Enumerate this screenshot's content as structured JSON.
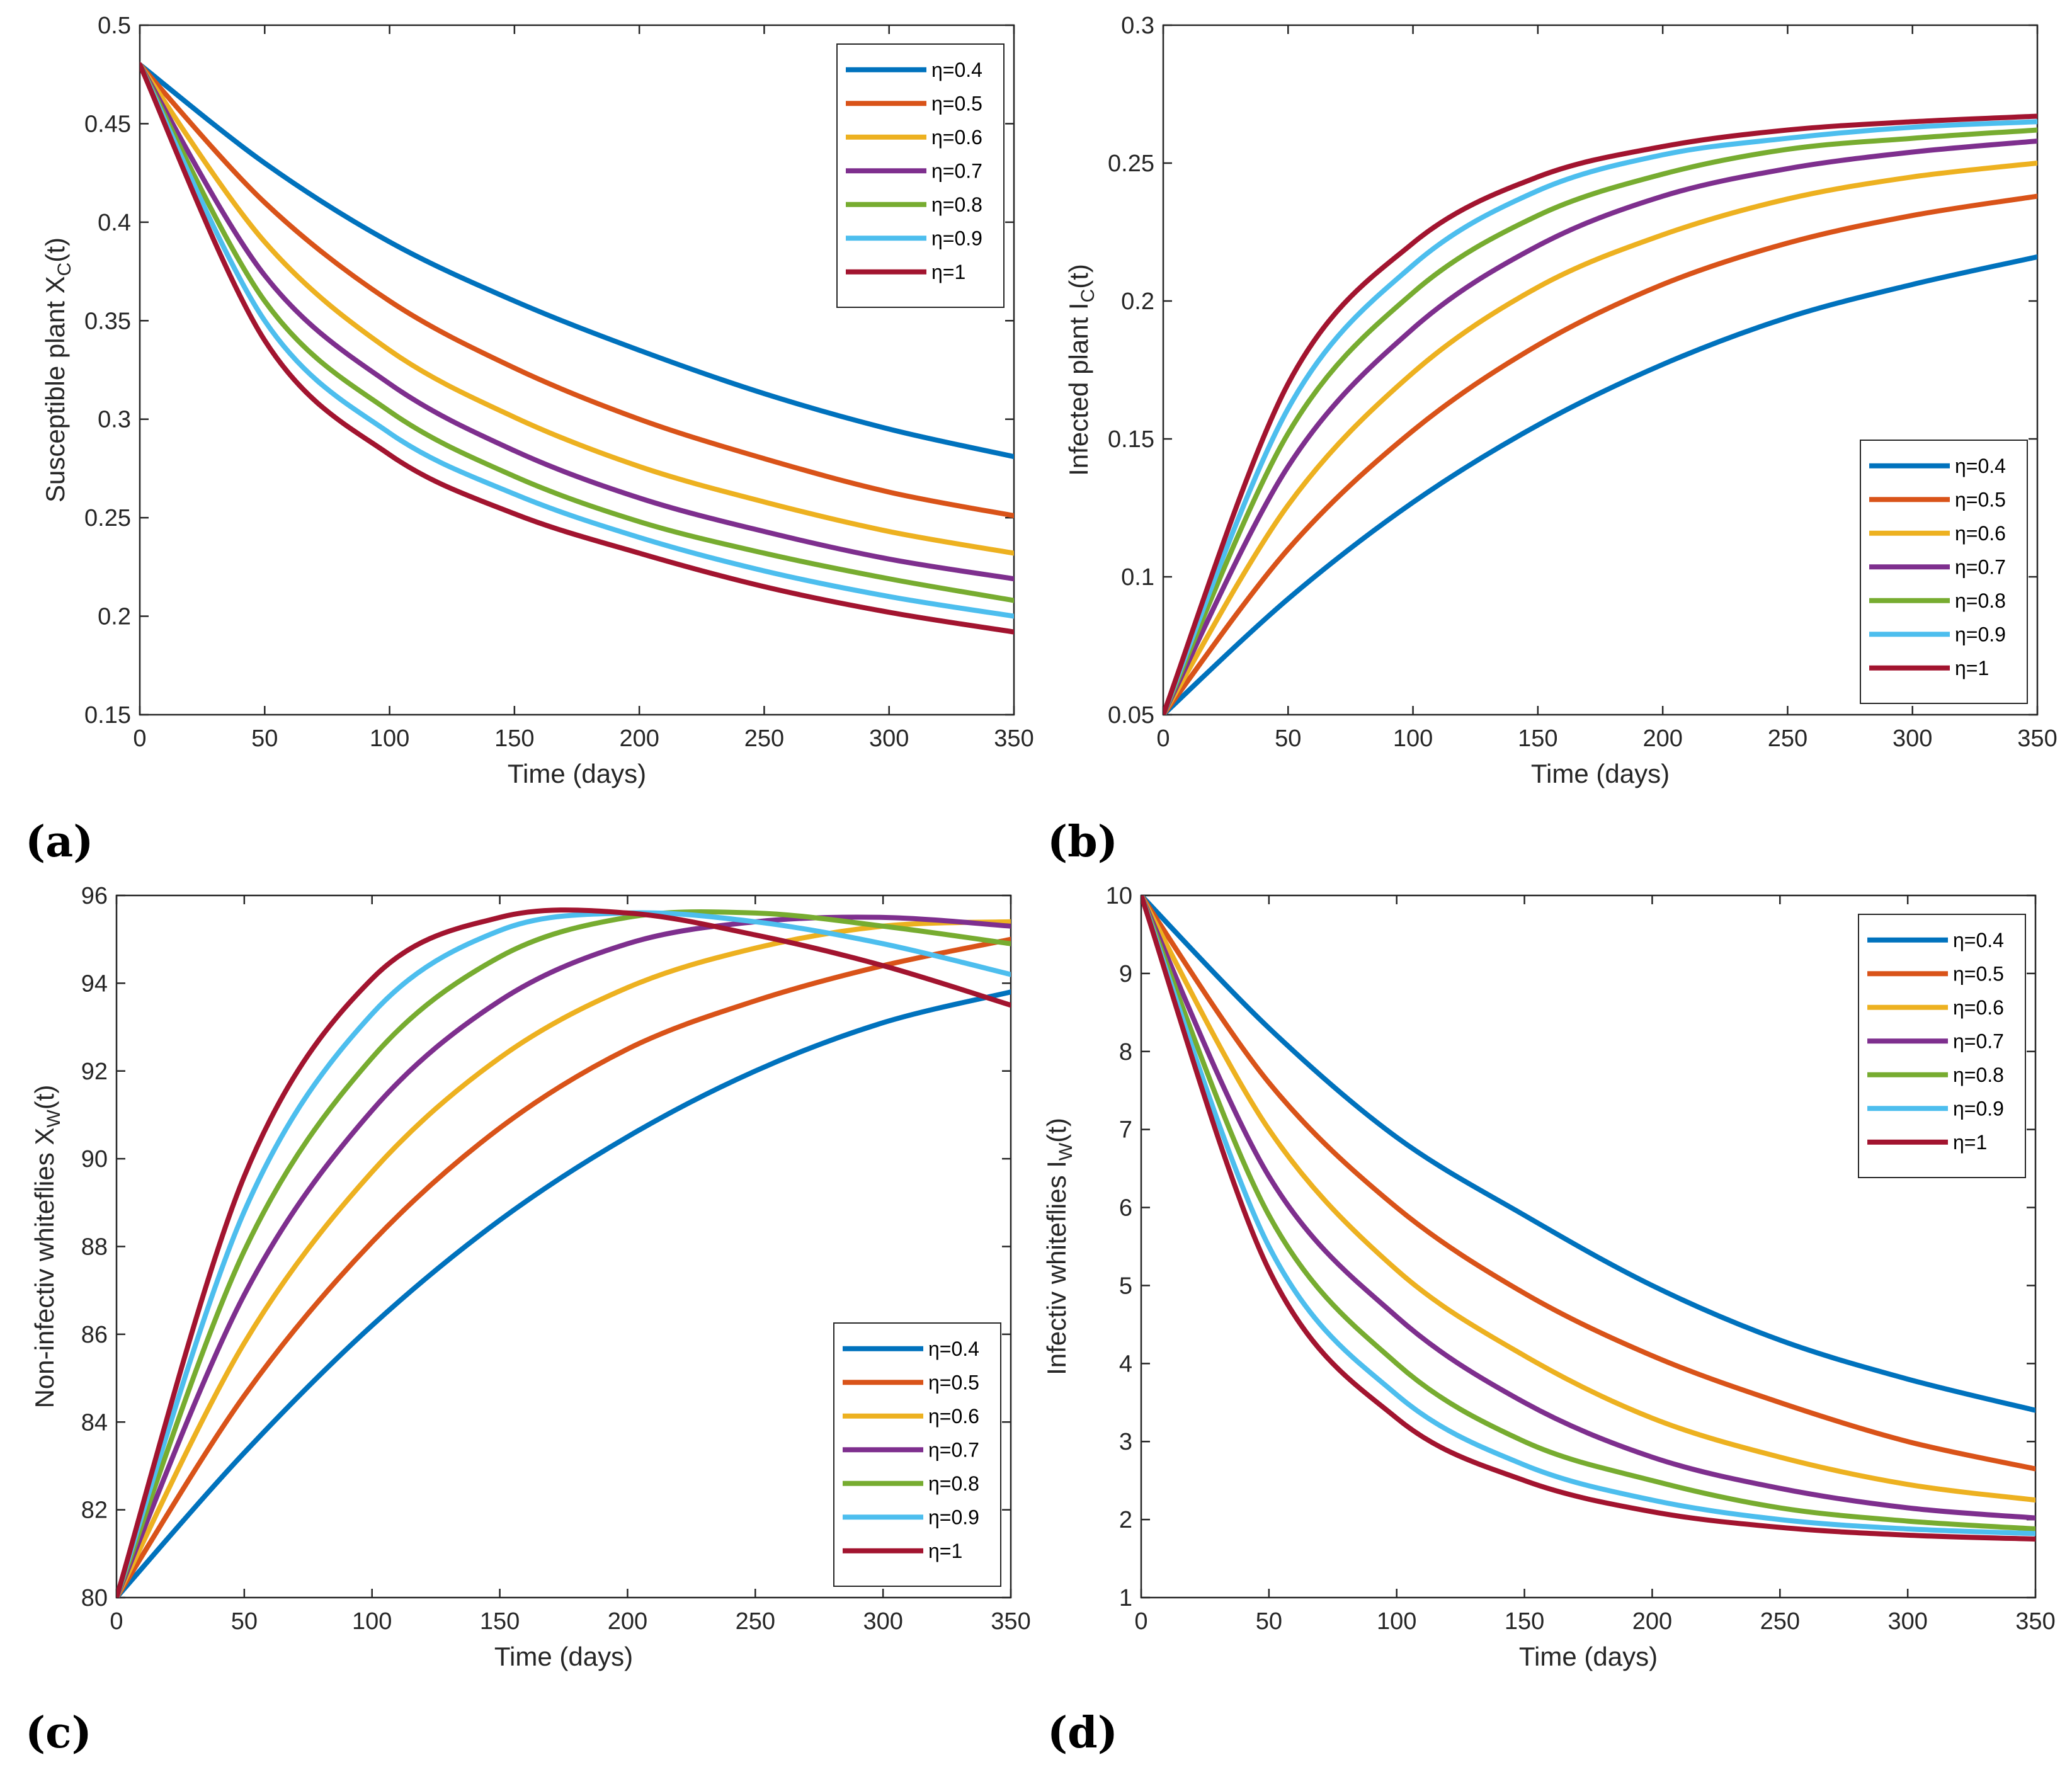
{
  "figure": {
    "panel_labels": [
      "(a)",
      "(b)",
      "(c)",
      "(d)"
    ]
  },
  "colors": {
    "eta_0.4": "#0072BD",
    "eta_0.5": "#D95319",
    "eta_0.6": "#EDB120",
    "eta_0.7": "#7E2F8E",
    "eta_0.8": "#77AC30",
    "eta_0.9": "#4DBEEE",
    "eta_1": "#A2142F"
  },
  "chart_data": [
    {
      "id": "a",
      "panel_label": "(a)",
      "type": "line",
      "title": "",
      "xlabel": "Time (days)",
      "ylabel_main": "Susceptible plant X",
      "ylabel_sub": "C",
      "ylabel_tail": "(t)",
      "xlim": [
        0,
        350
      ],
      "ylim": [
        0.15,
        0.5
      ],
      "xticks": [
        0,
        50,
        100,
        150,
        200,
        250,
        300,
        350
      ],
      "yticks": [
        0.15,
        0.2,
        0.25,
        0.3,
        0.35,
        0.4,
        0.45,
        0.5
      ],
      "ytick_labels": [
        "0.15",
        "0.2",
        "0.25",
        "0.3",
        "0.35",
        "0.4",
        "0.45",
        "0.5"
      ],
      "legend_position": "top-right",
      "x": [
        0,
        50,
        100,
        150,
        200,
        250,
        300,
        350
      ],
      "series": [
        {
          "name": "η=0.4",
          "values": [
            0.48,
            0.43,
            0.39,
            0.36,
            0.335,
            0.313,
            0.295,
            0.281
          ]
        },
        {
          "name": "η=0.5",
          "values": [
            0.48,
            0.41,
            0.36,
            0.326,
            0.3,
            0.28,
            0.263,
            0.251
          ]
        },
        {
          "name": "η=0.6",
          "values": [
            0.48,
            0.39,
            0.335,
            0.301,
            0.276,
            0.258,
            0.243,
            0.232
          ]
        },
        {
          "name": "η=0.7",
          "values": [
            0.48,
            0.373,
            0.318,
            0.284,
            0.26,
            0.243,
            0.229,
            0.219
          ]
        },
        {
          "name": "η=0.8",
          "values": [
            0.48,
            0.36,
            0.304,
            0.271,
            0.248,
            0.232,
            0.219,
            0.208
          ]
        },
        {
          "name": "η=0.9",
          "values": [
            0.48,
            0.35,
            0.293,
            0.262,
            0.24,
            0.223,
            0.21,
            0.2
          ]
        },
        {
          "name": "η=1",
          "values": [
            0.48,
            0.34,
            0.282,
            0.252,
            0.232,
            0.215,
            0.202,
            0.192
          ]
        }
      ]
    },
    {
      "id": "b",
      "panel_label": "(b)",
      "type": "line",
      "title": "",
      "xlabel": "Time (days)",
      "ylabel_main": "Infected plant I",
      "ylabel_sub": "C",
      "ylabel_tail": "(t)",
      "xlim": [
        0,
        350
      ],
      "ylim": [
        0.05,
        0.3
      ],
      "xticks": [
        0,
        50,
        100,
        150,
        200,
        250,
        300,
        350
      ],
      "yticks": [
        0.05,
        0.1,
        0.15,
        0.2,
        0.25,
        0.3
      ],
      "ytick_labels": [
        "0.05",
        "0.1",
        "0.15",
        "0.2",
        "0.25",
        "0.3"
      ],
      "legend_position": "bottom-right",
      "x": [
        0,
        50,
        100,
        150,
        200,
        250,
        300,
        350
      ],
      "series": [
        {
          "name": "η=0.4",
          "values": [
            0.05,
            0.092,
            0.127,
            0.155,
            0.177,
            0.194,
            0.206,
            0.216
          ]
        },
        {
          "name": "η=0.5",
          "values": [
            0.05,
            0.11,
            0.153,
            0.184,
            0.206,
            0.221,
            0.231,
            0.238
          ]
        },
        {
          "name": "η=0.6",
          "values": [
            0.05,
            0.126,
            0.174,
            0.205,
            0.224,
            0.237,
            0.245,
            0.25
          ]
        },
        {
          "name": "η=0.7",
          "values": [
            0.05,
            0.14,
            0.19,
            0.22,
            0.238,
            0.248,
            0.254,
            0.258
          ]
        },
        {
          "name": "η=0.8",
          "values": [
            0.05,
            0.152,
            0.203,
            0.231,
            0.246,
            0.255,
            0.259,
            0.262
          ]
        },
        {
          "name": "η=0.9",
          "values": [
            0.05,
            0.161,
            0.213,
            0.24,
            0.253,
            0.259,
            0.263,
            0.265
          ]
        },
        {
          "name": "η=1",
          "values": [
            0.05,
            0.17,
            0.221,
            0.245,
            0.256,
            0.262,
            0.265,
            0.267
          ]
        }
      ]
    },
    {
      "id": "c",
      "panel_label": "(c)",
      "type": "line",
      "title": "",
      "xlabel": "Time (days)",
      "ylabel_main": "Non-infectiv whiteflies X",
      "ylabel_sub": "W",
      "ylabel_tail": "(t)",
      "xlim": [
        0,
        350
      ],
      "ylim": [
        80,
        96
      ],
      "xticks": [
        0,
        50,
        100,
        150,
        200,
        250,
        300,
        350
      ],
      "yticks": [
        80,
        82,
        84,
        86,
        88,
        90,
        92,
        94,
        96
      ],
      "ytick_labels": [
        "80",
        "82",
        "84",
        "86",
        "88",
        "90",
        "92",
        "94",
        "96"
      ],
      "legend_position": "bottom-right",
      "x": [
        0,
        50,
        100,
        150,
        200,
        250,
        300,
        350
      ],
      "series": [
        {
          "name": "η=0.4",
          "values": [
            80,
            83.3,
            86.2,
            88.6,
            90.5,
            92,
            93.1,
            93.8
          ]
        },
        {
          "name": "η=0.5",
          "values": [
            80,
            84.6,
            88.1,
            90.7,
            92.5,
            93.6,
            94.4,
            95
          ]
        },
        {
          "name": "η=0.6",
          "values": [
            80,
            85.8,
            89.7,
            92.3,
            93.9,
            94.8,
            95.3,
            95.4
          ]
        },
        {
          "name": "η=0.7",
          "values": [
            80,
            86.9,
            91.1,
            93.6,
            94.9,
            95.4,
            95.5,
            95.3
          ]
        },
        {
          "name": "η=0.8",
          "values": [
            80,
            87.9,
            92.3,
            94.6,
            95.5,
            95.6,
            95.3,
            94.9
          ]
        },
        {
          "name": "η=0.9",
          "values": [
            80,
            88.8,
            93.3,
            95.2,
            95.6,
            95.4,
            94.9,
            94.2
          ]
        },
        {
          "name": "η=1",
          "values": [
            80,
            89.6,
            94.1,
            95.5,
            95.6,
            95.1,
            94.4,
            93.5
          ]
        }
      ]
    },
    {
      "id": "d",
      "panel_label": "(d)",
      "type": "line",
      "title": "",
      "xlabel": "Time (days)",
      "ylabel_main": "Infectiv whiteflies I",
      "ylabel_sub": "W",
      "ylabel_tail": "(t)",
      "xlim": [
        0,
        350
      ],
      "ylim": [
        1,
        10
      ],
      "xticks": [
        0,
        50,
        100,
        150,
        200,
        250,
        300,
        350
      ],
      "yticks": [
        1,
        2,
        3,
        4,
        5,
        6,
        7,
        8,
        9,
        10
      ],
      "ytick_labels": [
        "1",
        "2",
        "3",
        "4",
        "5",
        "6",
        "7",
        "8",
        "9",
        "10"
      ],
      "legend_position": "top-right",
      "x": [
        0,
        50,
        100,
        150,
        200,
        250,
        300,
        350
      ],
      "series": [
        {
          "name": "η=0.4",
          "values": [
            10,
            8.3,
            6.9,
            5.9,
            5.0,
            4.3,
            3.8,
            3.4
          ]
        },
        {
          "name": "η=0.5",
          "values": [
            10,
            7.6,
            6.0,
            4.9,
            4.1,
            3.5,
            3.0,
            2.65
          ]
        },
        {
          "name": "η=0.6",
          "values": [
            10,
            7.0,
            5.2,
            4.1,
            3.3,
            2.8,
            2.45,
            2.25
          ]
        },
        {
          "name": "η=0.7",
          "values": [
            10,
            6.4,
            4.6,
            3.5,
            2.8,
            2.4,
            2.15,
            2.02
          ]
        },
        {
          "name": "η=0.8",
          "values": [
            10,
            5.9,
            4.0,
            3.0,
            2.5,
            2.15,
            1.98,
            1.88
          ]
        },
        {
          "name": "η=0.9",
          "values": [
            10,
            5.5,
            3.6,
            2.7,
            2.25,
            2.0,
            1.88,
            1.82
          ]
        },
        {
          "name": "η=1",
          "values": [
            10,
            5.2,
            3.3,
            2.5,
            2.1,
            1.9,
            1.8,
            1.75
          ]
        }
      ]
    }
  ]
}
